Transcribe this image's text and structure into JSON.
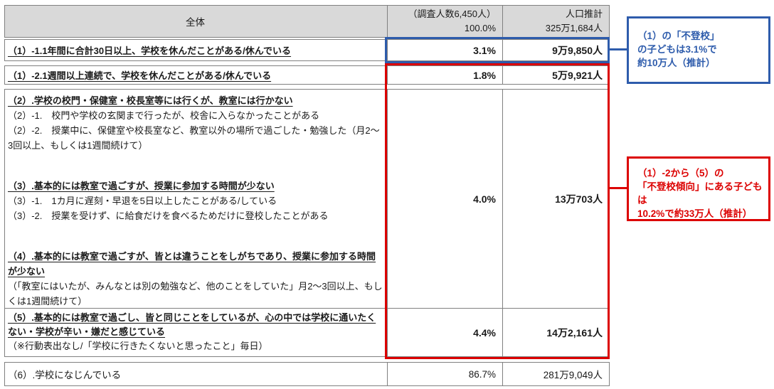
{
  "table": {
    "header": {
      "overall": "全体",
      "survey_line1": "（調査人数6,450人）",
      "survey_line2": "100.0%",
      "population_line1": "人口推計",
      "population_line2": "325万1,684人"
    },
    "row1": {
      "label": " （1）-1.1年間に合計30日以上、学校を休んだことがある/休んでいる",
      "percent": "3.1%",
      "population": "9万9,850人"
    },
    "row2": {
      "label": " （1）-2.1週間以上連続で、学校を休んだことがある/休んでいる",
      "percent": "1.8%",
      "population": "5万9,921人"
    },
    "merged": {
      "section2_heading": " （2）.学校の校門・保健室・校長室等には行くが、教室には行かない",
      "section2_item1": "（2）-1.　校門や学校の玄関まで行ったが、校舎に入らなかったことがある",
      "section2_item2": "（2）-2.　授業中に、保健室や校長室など、教室以外の場所で過ごした・勉強した（月2～3回以上、もしくは1週間続けて）",
      "section3_heading": " （3）.基本的には教室で過ごすが、授業に参加する時間が少ない",
      "section3_item1": "（3）-1.　1カ月に遅刻・早退を5日以上したことがある/している",
      "section3_item2": "（3）-2.　授業を受けず、に給食だけを食べるためだけに登校したことがある",
      "section4_heading": " （4）.基本的には教室で過ごすが、皆とは違うことをしがちであり、授業に参加する時間が少ない",
      "section4_note": "（「教室にはいたが、みんなとは別の勉強など、他のことをしていた」月2～3回以上、もしくは1週間続けて）",
      "percent": "4.0%",
      "population": "13万703人"
    },
    "row5": {
      "label": " （5）.基本的には教室で過ごし、皆と同じことをしているが、心の中では学校に通いたくない・学校が辛い・嫌だと感じている",
      "note": "（※行動表出なし/「学校に行きたくないと思ったこと」毎日）",
      "percent": "4.4%",
      "population": "14万2,161人"
    },
    "row6": {
      "label": "（6）.学校になじんでいる",
      "percent": "86.7%",
      "population": "281万9,049人"
    }
  },
  "callouts": {
    "blue": {
      "line1": "（1）の「不登校」",
      "line2": "の子どもは3.1%で",
      "line3": "約10万人（推計）"
    },
    "red": {
      "line1": "（1）-2から（5）の",
      "line2": "「不登校傾向」にある子どもは",
      "line3": "10.2%で約33万人（推計）"
    }
  },
  "colors": {
    "highlight_blue": "#2e5cac",
    "highlight_red": "#dc0000",
    "header_bg": "#d9d9d9",
    "table_border": "#808080"
  }
}
